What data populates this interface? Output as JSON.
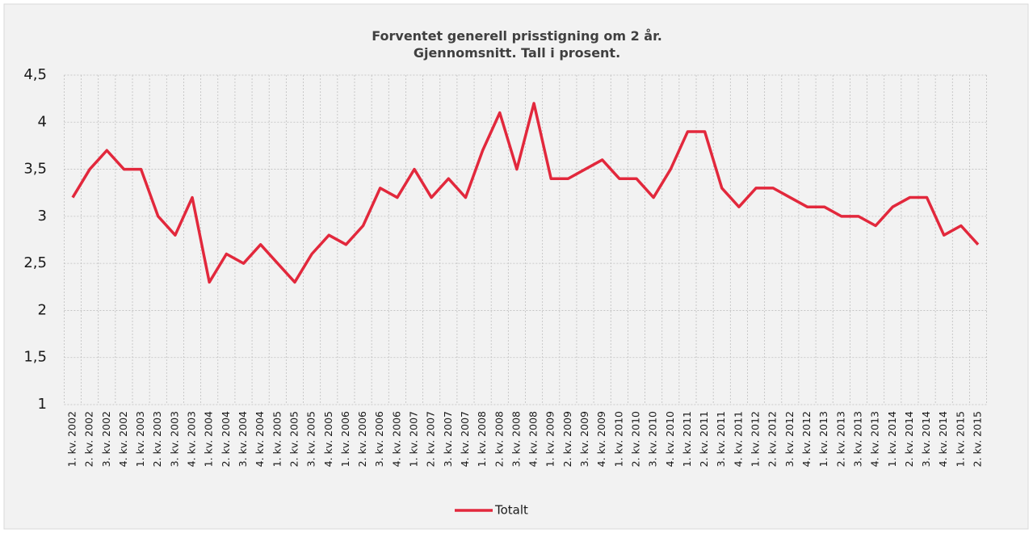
{
  "chart_data": {
    "type": "line",
    "title": [
      "Forventet generell prisstigning om 2 år.",
      "Gjennomsnitt. Tall i prosent."
    ],
    "categories": [
      "1. kv. 2002",
      "2. kv. 2002",
      "3. kv. 2002",
      "4. kv. 2002",
      "1. kv. 2003",
      "2. kv. 2003",
      "3. kv. 2003",
      "4. kv. 2003",
      "1. kv. 2004",
      "2. kv. 2004",
      "3. kv. 2004",
      "4. kv. 2004",
      "1. kv. 2005",
      "2. kv. 2005",
      "3. kv. 2005",
      "4. kv. 2005",
      "1. kv. 2006",
      "2. kv. 2006",
      "3. kv. 2006",
      "4. kv. 2006",
      "1. kv. 2007",
      "2. kv. 2007",
      "3. kv. 2007",
      "4. kv. 2007",
      "1. kv. 2008",
      "2. kv. 2008",
      "3. kv. 2008",
      "4. kv. 2008",
      "1. kv. 2009",
      "2. kv. 2009",
      "3. kv. 2009",
      "4. kv. 2009",
      "1. kv. 2010",
      "2. kv. 2010",
      "3. kv. 2010",
      "4. kv. 2010",
      "1. kv. 2011",
      "2. kv. 2011",
      "3. kv. 2011",
      "4. kv. 2011",
      "1. kv. 2012",
      "2. kv. 2012",
      "3. kv. 2012",
      "4. kv. 2012",
      "1. kv. 2013",
      "2. kv. 2013",
      "3. kv. 2013",
      "4. kv. 2013",
      "1. kv. 2014",
      "2. kv. 2014",
      "3. kv. 2014",
      "4. kv. 2014",
      "1. kv. 2015",
      "2. kv. 2015"
    ],
    "series": [
      {
        "name": "Totalt",
        "color": "#e2283c",
        "values": [
          3.2,
          3.5,
          3.7,
          3.5,
          3.5,
          3.0,
          2.8,
          3.2,
          2.3,
          2.6,
          2.5,
          2.7,
          2.5,
          2.3,
          2.6,
          2.8,
          2.7,
          2.9,
          3.3,
          3.2,
          3.5,
          3.2,
          3.4,
          3.2,
          3.7,
          4.1,
          3.5,
          4.2,
          3.4,
          3.4,
          3.5,
          3.6,
          3.4,
          3.4,
          3.2,
          3.5,
          3.9,
          3.9,
          3.3,
          3.1,
          3.3,
          3.3,
          3.2,
          3.1,
          3.1,
          3.0,
          3.0,
          2.9,
          3.1,
          3.2,
          3.2,
          2.8,
          2.9,
          2.7
        ]
      }
    ],
    "ylim": [
      1,
      4.5
    ],
    "yticks": [
      1,
      {
        "value": 1.5,
        "label": "1,5"
      },
      2,
      {
        "value": 2.5,
        "label": "2,5"
      },
      3,
      {
        "value": 3.5,
        "label": "3,5"
      },
      4,
      {
        "value": 4.5,
        "label": "4,5"
      }
    ],
    "grid": true,
    "legend": "bottom"
  }
}
